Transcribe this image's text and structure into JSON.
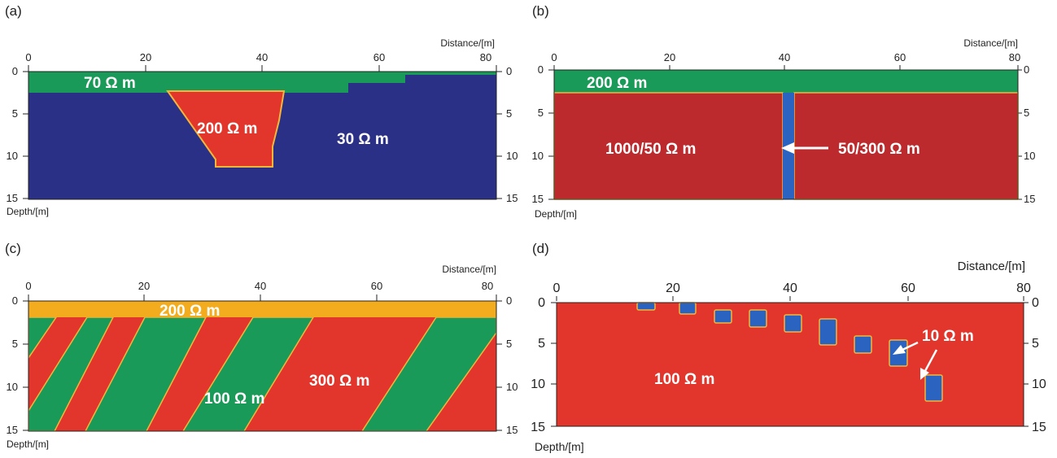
{
  "colors": {
    "green": "#1a9a58",
    "blue": "#2b3087",
    "red": "#e2352b",
    "dark_red": "#bc2a2d",
    "orange": "#f4ac1f",
    "boundary": "#f2b63a",
    "arrow": "#ffffff"
  },
  "axis_labels": {
    "distance": "Distance/[m]",
    "depth": "Depth/[m]"
  },
  "panels": [
    {
      "id": "a",
      "title": "(a)",
      "x_ticks": [
        "0",
        "20",
        "40",
        "60",
        "80"
      ],
      "depth_ticks": [
        "0",
        "5",
        "10",
        "15"
      ],
      "labels": [
        "70 Ω m",
        "200 Ω m",
        "30 Ω m"
      ]
    },
    {
      "id": "b",
      "title": "(b)",
      "x_ticks": [
        "0",
        "20",
        "40",
        "60",
        "80"
      ],
      "depth_ticks": [
        "0",
        "5",
        "10",
        "15"
      ],
      "labels": [
        "200 Ω m",
        "1000/50 Ω m",
        "50/300 Ω m"
      ]
    },
    {
      "id": "c",
      "title": "(c)",
      "x_ticks": [
        "0",
        "20",
        "40",
        "60",
        "80"
      ],
      "depth_ticks": [
        "0",
        "5",
        "10",
        "15"
      ],
      "labels": [
        "200 Ω m",
        "100 Ω m",
        "300 Ω m"
      ]
    },
    {
      "id": "d",
      "title": "(d)",
      "x_ticks": [
        "0",
        "20",
        "40",
        "60",
        "80"
      ],
      "depth_ticks": [
        "0",
        "5",
        "10",
        "15"
      ],
      "labels": [
        "100 Ω m",
        "10 Ω m"
      ]
    }
  ]
}
